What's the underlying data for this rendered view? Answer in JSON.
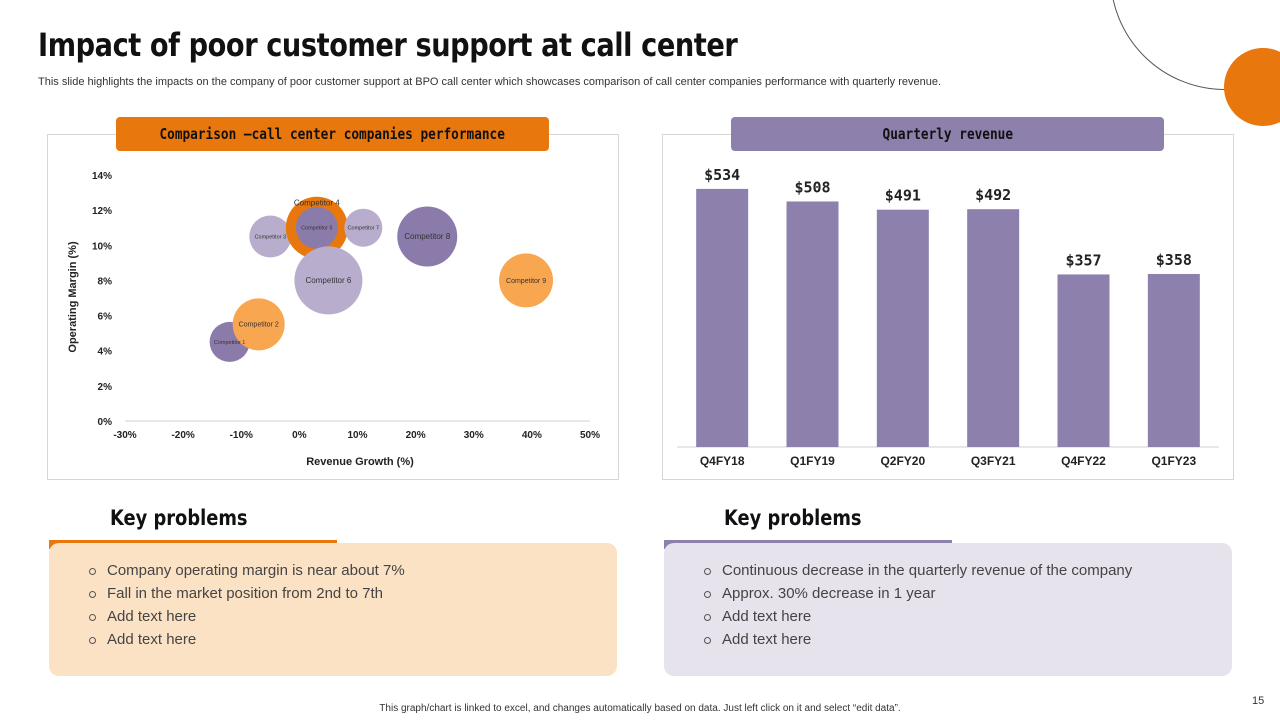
{
  "slide": {
    "title": "Impact of poor customer support at call center",
    "subtitle": "This slide highlights the impacts on the company of poor customer support at BPO  call center which showcases comparison of call center companies performance with quarterly revenue.",
    "footer": "This graph/chart is linked to excel, and changes automatically based on data. Just left click on it and select “edit data”.",
    "page_number": "15"
  },
  "colors": {
    "orange": "#E8770E",
    "light_orange": "#F9A650",
    "purple": "#8B7BAA",
    "light_purple": "#B8ADCD",
    "lavender": "#8E80AC"
  },
  "left_panel": {
    "header": "Comparison –call center companies performance"
  },
  "right_panel": {
    "header": "Quarterly revenue"
  },
  "chart_data": [
    {
      "type": "scatter",
      "title": "Comparison –call center companies performance",
      "xlabel": "Revenue Growth (%)",
      "ylabel": "Operating Margin (%)",
      "xlim": [
        -30,
        50
      ],
      "ylim": [
        0,
        14
      ],
      "x_ticks": [
        "-30%",
        "-20%",
        "-10%",
        "0%",
        "10%",
        "20%",
        "30%",
        "40%",
        "50%"
      ],
      "y_ticks": [
        "0%",
        "2%",
        "4%",
        "6%",
        "8%",
        "10%",
        "12%",
        "14%"
      ],
      "bubbles": [
        {
          "label": "Competitor 1",
          "x": -12,
          "y": 4.5,
          "size": 20,
          "color": "#8B7BAA"
        },
        {
          "label": "Competitor 2",
          "x": -7,
          "y": 5.5,
          "size": 26,
          "color": "#F9A650"
        },
        {
          "label": "Competitor 3",
          "x": -5,
          "y": 10.5,
          "size": 21,
          "color": "#B8ADCD"
        },
        {
          "label": "Competitor 4",
          "x": 3,
          "y": 11,
          "size": 31,
          "color": "#E8770E"
        },
        {
          "label": "Competitor 5",
          "x": 3,
          "y": 11,
          "size": 21,
          "color": "#8B7BAA"
        },
        {
          "label": "Competitor 7",
          "x": 11,
          "y": 11,
          "size": 19,
          "color": "#B8ADCD"
        },
        {
          "label": "Competitor 6",
          "x": 5,
          "y": 8,
          "size": 34,
          "color": "#B8ADCD"
        },
        {
          "label": "Competitor 8",
          "x": 22,
          "y": 10.5,
          "size": 30,
          "color": "#8B7BAA"
        },
        {
          "label": "Competitor 9",
          "x": 39,
          "y": 8,
          "size": 27,
          "color": "#F9A650"
        }
      ]
    },
    {
      "type": "bar",
      "title": "Quarterly revenue",
      "categories": [
        "Q4FY18",
        "Q1FY19",
        "Q2FY20",
        "Q3FY21",
        "Q4FY22",
        "Q1FY23"
      ],
      "values": [
        534,
        508,
        491,
        492,
        357,
        358
      ],
      "data_labels": [
        "$534",
        "$508",
        "$491",
        "$492",
        "$357",
        "$358"
      ],
      "ylim": [
        0,
        600
      ],
      "color": "#8E80AC"
    }
  ],
  "key_problems_left": {
    "title": "Key problems",
    "items": [
      "Company operating margin is near about 7%",
      "Fall in the market position from 2nd to 7th",
      "Add text here",
      "Add text here"
    ]
  },
  "key_problems_right": {
    "title": "Key problems",
    "items": [
      "Continuous decrease in the quarterly revenue of the company",
      "Approx. 30% decrease in 1 year",
      "Add text here",
      "Add text here"
    ]
  }
}
